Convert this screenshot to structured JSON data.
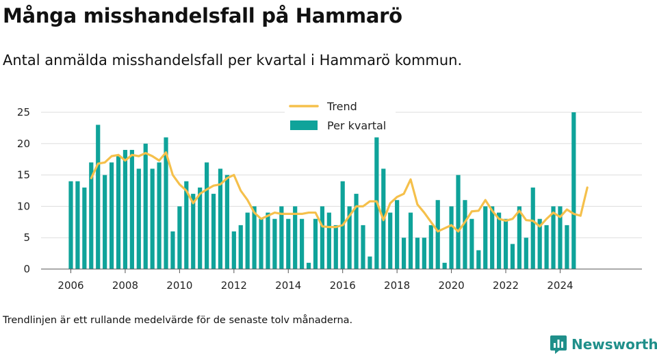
{
  "title": "Många misshandelsfall på Hammarö",
  "subtitle": "Antal anmälda misshandelsfall per kvartal i Hammarö kommun.",
  "footnote": "Trendlinjen är ett rullande medelvärde för de senaste tolv månaderna.",
  "brand": {
    "name": "Newsworthy",
    "color": "#1f8f8a",
    "icon": "chart-bubble-icon"
  },
  "chart_data": {
    "type": "bar",
    "x_start_year": 2006,
    "ylim": [
      0,
      25
    ],
    "yticks": [
      0,
      5,
      10,
      15,
      20,
      25
    ],
    "xticks": [
      "2006",
      "2008",
      "2010",
      "2012",
      "2014",
      "2016",
      "2018",
      "2020",
      "2022",
      "2024"
    ],
    "grid": true,
    "legend_position": "top-center",
    "colors": {
      "bars": "#0fa39a",
      "trend": "#f5c04b"
    },
    "series": [
      {
        "name": "Per kvartal",
        "type": "bar",
        "values": [
          14,
          14,
          13,
          17,
          23,
          15,
          17,
          18,
          19,
          19,
          16,
          20,
          16,
          17,
          21,
          6,
          10,
          14,
          12,
          13,
          17,
          12,
          16,
          15,
          6,
          7,
          9,
          10,
          8,
          9,
          8,
          10,
          8,
          10,
          8,
          1,
          8,
          10,
          9,
          7,
          14,
          10,
          12,
          7,
          2,
          21,
          16,
          9,
          11,
          5,
          9,
          5,
          5,
          7,
          11,
          1,
          10,
          15,
          11,
          8,
          3,
          10,
          10,
          9,
          8,
          4,
          10,
          5,
          13,
          8,
          7,
          10,
          10,
          7,
          25
        ]
      },
      {
        "name": "Trend",
        "type": "line",
        "start_index": 3,
        "values": [
          14.5,
          16.8,
          17,
          18,
          18.2,
          17.3,
          18.2,
          18,
          18.5,
          18,
          17.3,
          18.6,
          15,
          13.5,
          12.5,
          10.5,
          12,
          12.7,
          13.3,
          13.5,
          14.5,
          15,
          12.5,
          11,
          9,
          8,
          8.5,
          9,
          8.8,
          8.8,
          8.8,
          8.8,
          9,
          9,
          6.8,
          6.7,
          6.7,
          7,
          8.5,
          10,
          10,
          10.8,
          10.8,
          7.8,
          10.5,
          11.5,
          12,
          14.3,
          10.3,
          9,
          7.5,
          6,
          6.5,
          7,
          6,
          7.5,
          9.2,
          9.3,
          11,
          9.3,
          8,
          7.7,
          8,
          9.3,
          7.8,
          7.7,
          6.8,
          8,
          9,
          8.3,
          9.5,
          8.8,
          8.5,
          13
        ]
      }
    ]
  }
}
